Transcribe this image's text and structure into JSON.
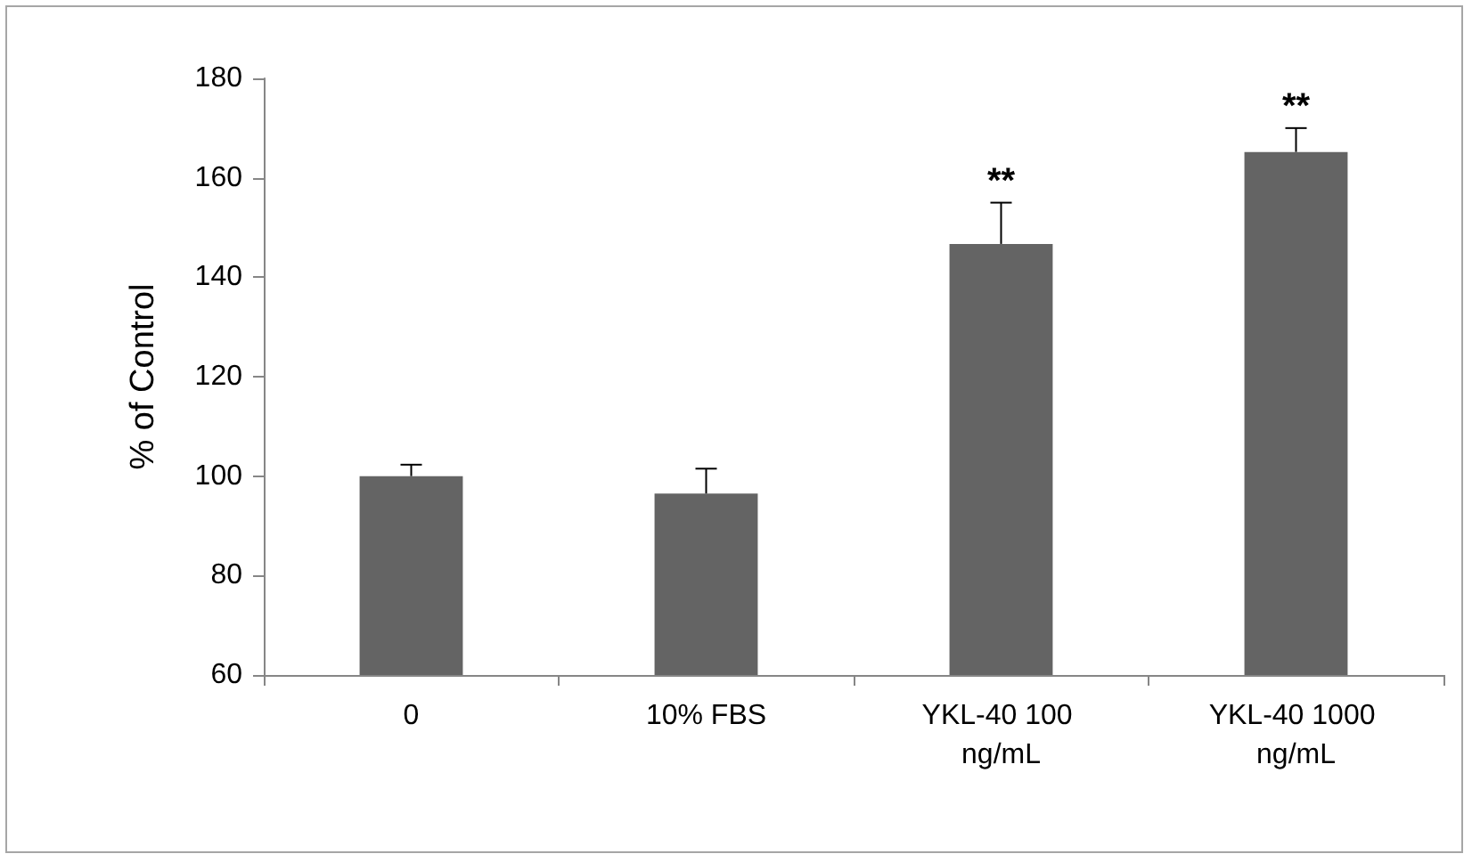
{
  "chart_data": {
    "type": "bar",
    "ylabel": "% of Control",
    "categories": [
      "0",
      "10% FBS",
      "YKL-40 100 ng/mL",
      "YKL-40 1000 ng/mL"
    ],
    "values": [
      100,
      96.5,
      146.7,
      165.2
    ],
    "errors": [
      [
        100,
        102.3
      ],
      [
        96.5,
        101.5
      ],
      [
        146.7,
        155
      ],
      [
        165.2,
        170
      ]
    ],
    "color": "#646464",
    "ylim": [
      60,
      180
    ],
    "yticks": [
      60,
      80,
      100,
      120,
      140,
      160,
      180
    ],
    "grid": false,
    "annotations": [
      {
        "text": "**",
        "x": "YKL-40 100 ng/mL",
        "y": 155
      },
      {
        "text": "**",
        "x": "YKL-40 1000 ng/mL",
        "y": 170
      }
    ]
  }
}
